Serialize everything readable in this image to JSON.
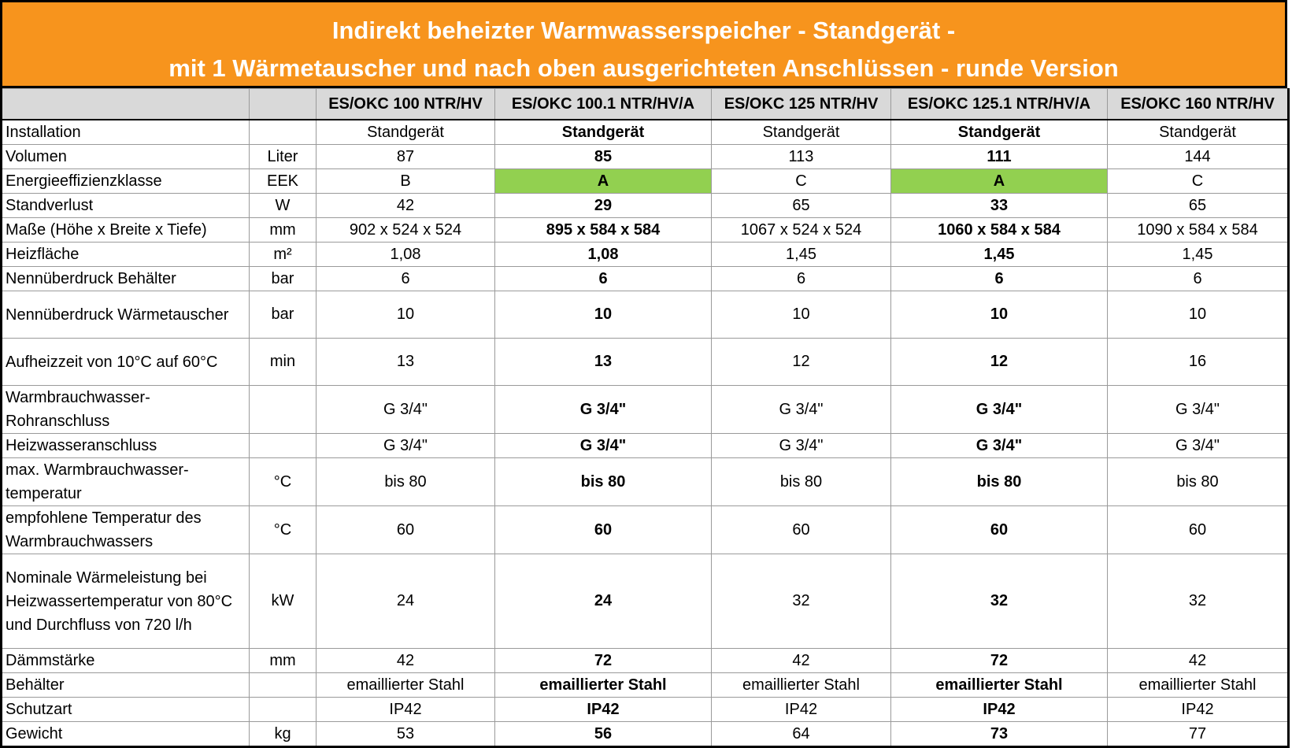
{
  "title": {
    "line1": "Indirekt beheizter Warmwasserspeicher - Standgerät -",
    "line2": "mit 1 Wärmetauscher und nach oben ausgerichteten Anschlüssen - runde Version"
  },
  "columns": [
    "ES/OKC 100 NTR/HV",
    "ES/OKC 100.1 NTR/HV/A",
    "ES/OKC 125 NTR/HV",
    "ES/OKC 125.1 NTR/HV/A",
    "ES/OKC 160 NTR/HV"
  ],
  "colors": {
    "header_bg": "#f7941d",
    "highlight": "#92d050",
    "head_row": "#d9d9d9"
  },
  "rows": [
    {
      "label": "Installation",
      "unit": "",
      "values": [
        "Standgerät",
        "Standgerät",
        "Standgerät",
        "Standgerät",
        "Standgerät"
      ]
    },
    {
      "label": "Volumen",
      "unit": "Liter",
      "values": [
        "87",
        "85",
        "113",
        "111",
        "144"
      ]
    },
    {
      "label": "Energieeffizienzklasse",
      "unit": "EEK",
      "values": [
        "B",
        "A",
        "C",
        "A",
        "C"
      ]
    },
    {
      "label": "Standverlust",
      "unit": "W",
      "values": [
        "42",
        "29",
        "65",
        "33",
        "65"
      ]
    },
    {
      "label": "Maße (Höhe x Breite x Tiefe)",
      "unit": "mm",
      "values": [
        "902 x 524 x 524",
        "895 x 584 x 584",
        "1067 x 524 x 524",
        "1060 x 584 x 584",
        "1090 x 584 x 584"
      ]
    },
    {
      "label": "Heizfläche",
      "unit": "m²",
      "values": [
        "1,08",
        "1,08",
        "1,45",
        "1,45",
        "1,45"
      ]
    },
    {
      "label": "Nennüberdruck Behälter",
      "unit": "bar",
      "values": [
        "6",
        "6",
        "6",
        "6",
        "6"
      ]
    },
    {
      "label": "Nennüberdruck Wärmetauscher",
      "unit": "bar",
      "values": [
        "10",
        "10",
        "10",
        "10",
        "10"
      ]
    },
    {
      "label": "Aufheizzeit von 10°C auf 60°C",
      "unit": "min",
      "values": [
        "13",
        "13",
        "12",
        "12",
        "16"
      ]
    },
    {
      "label": "Warmbrauchwasser-Rohranschluss",
      "unit": "",
      "values": [
        "G 3/4\"",
        "G 3/4\"",
        "G 3/4\"",
        "G 3/4\"",
        "G 3/4\""
      ]
    },
    {
      "label": "Heizwasseranschluss",
      "unit": "",
      "values": [
        "G 3/4\"",
        "G 3/4\"",
        "G 3/4\"",
        "G 3/4\"",
        "G 3/4\""
      ]
    },
    {
      "label": "max. Warmbrauchwasser-temperatur",
      "unit": "°C",
      "values": [
        "bis 80",
        "bis 80",
        "bis 80",
        "bis 80",
        "bis 80"
      ]
    },
    {
      "label": "empfohlene Temperatur des Warmbrauchwassers",
      "unit": "°C",
      "values": [
        "60",
        "60",
        "60",
        "60",
        "60"
      ]
    },
    {
      "label": "Nominale Wärmeleistung bei Heizwassertemperatur von 80°C und Durchfluss von 720 l/h",
      "unit": "kW",
      "values": [
        "24",
        "24",
        "32",
        "32",
        "32"
      ]
    },
    {
      "label": "Dämmstärke",
      "unit": "mm",
      "values": [
        "42",
        "72",
        "42",
        "72",
        "42"
      ]
    },
    {
      "label": "Behälter",
      "unit": "",
      "values": [
        "emaillierter Stahl",
        "emaillierter Stahl",
        "emaillierter Stahl",
        "emaillierter Stahl",
        "emaillierter Stahl"
      ]
    },
    {
      "label": "Schutzart",
      "unit": "",
      "values": [
        "IP42",
        "IP42",
        "IP42",
        "IP42",
        "IP42"
      ]
    },
    {
      "label": "Gewicht",
      "unit": "kg",
      "values": [
        "53",
        "56",
        "64",
        "73",
        "77"
      ]
    }
  ]
}
